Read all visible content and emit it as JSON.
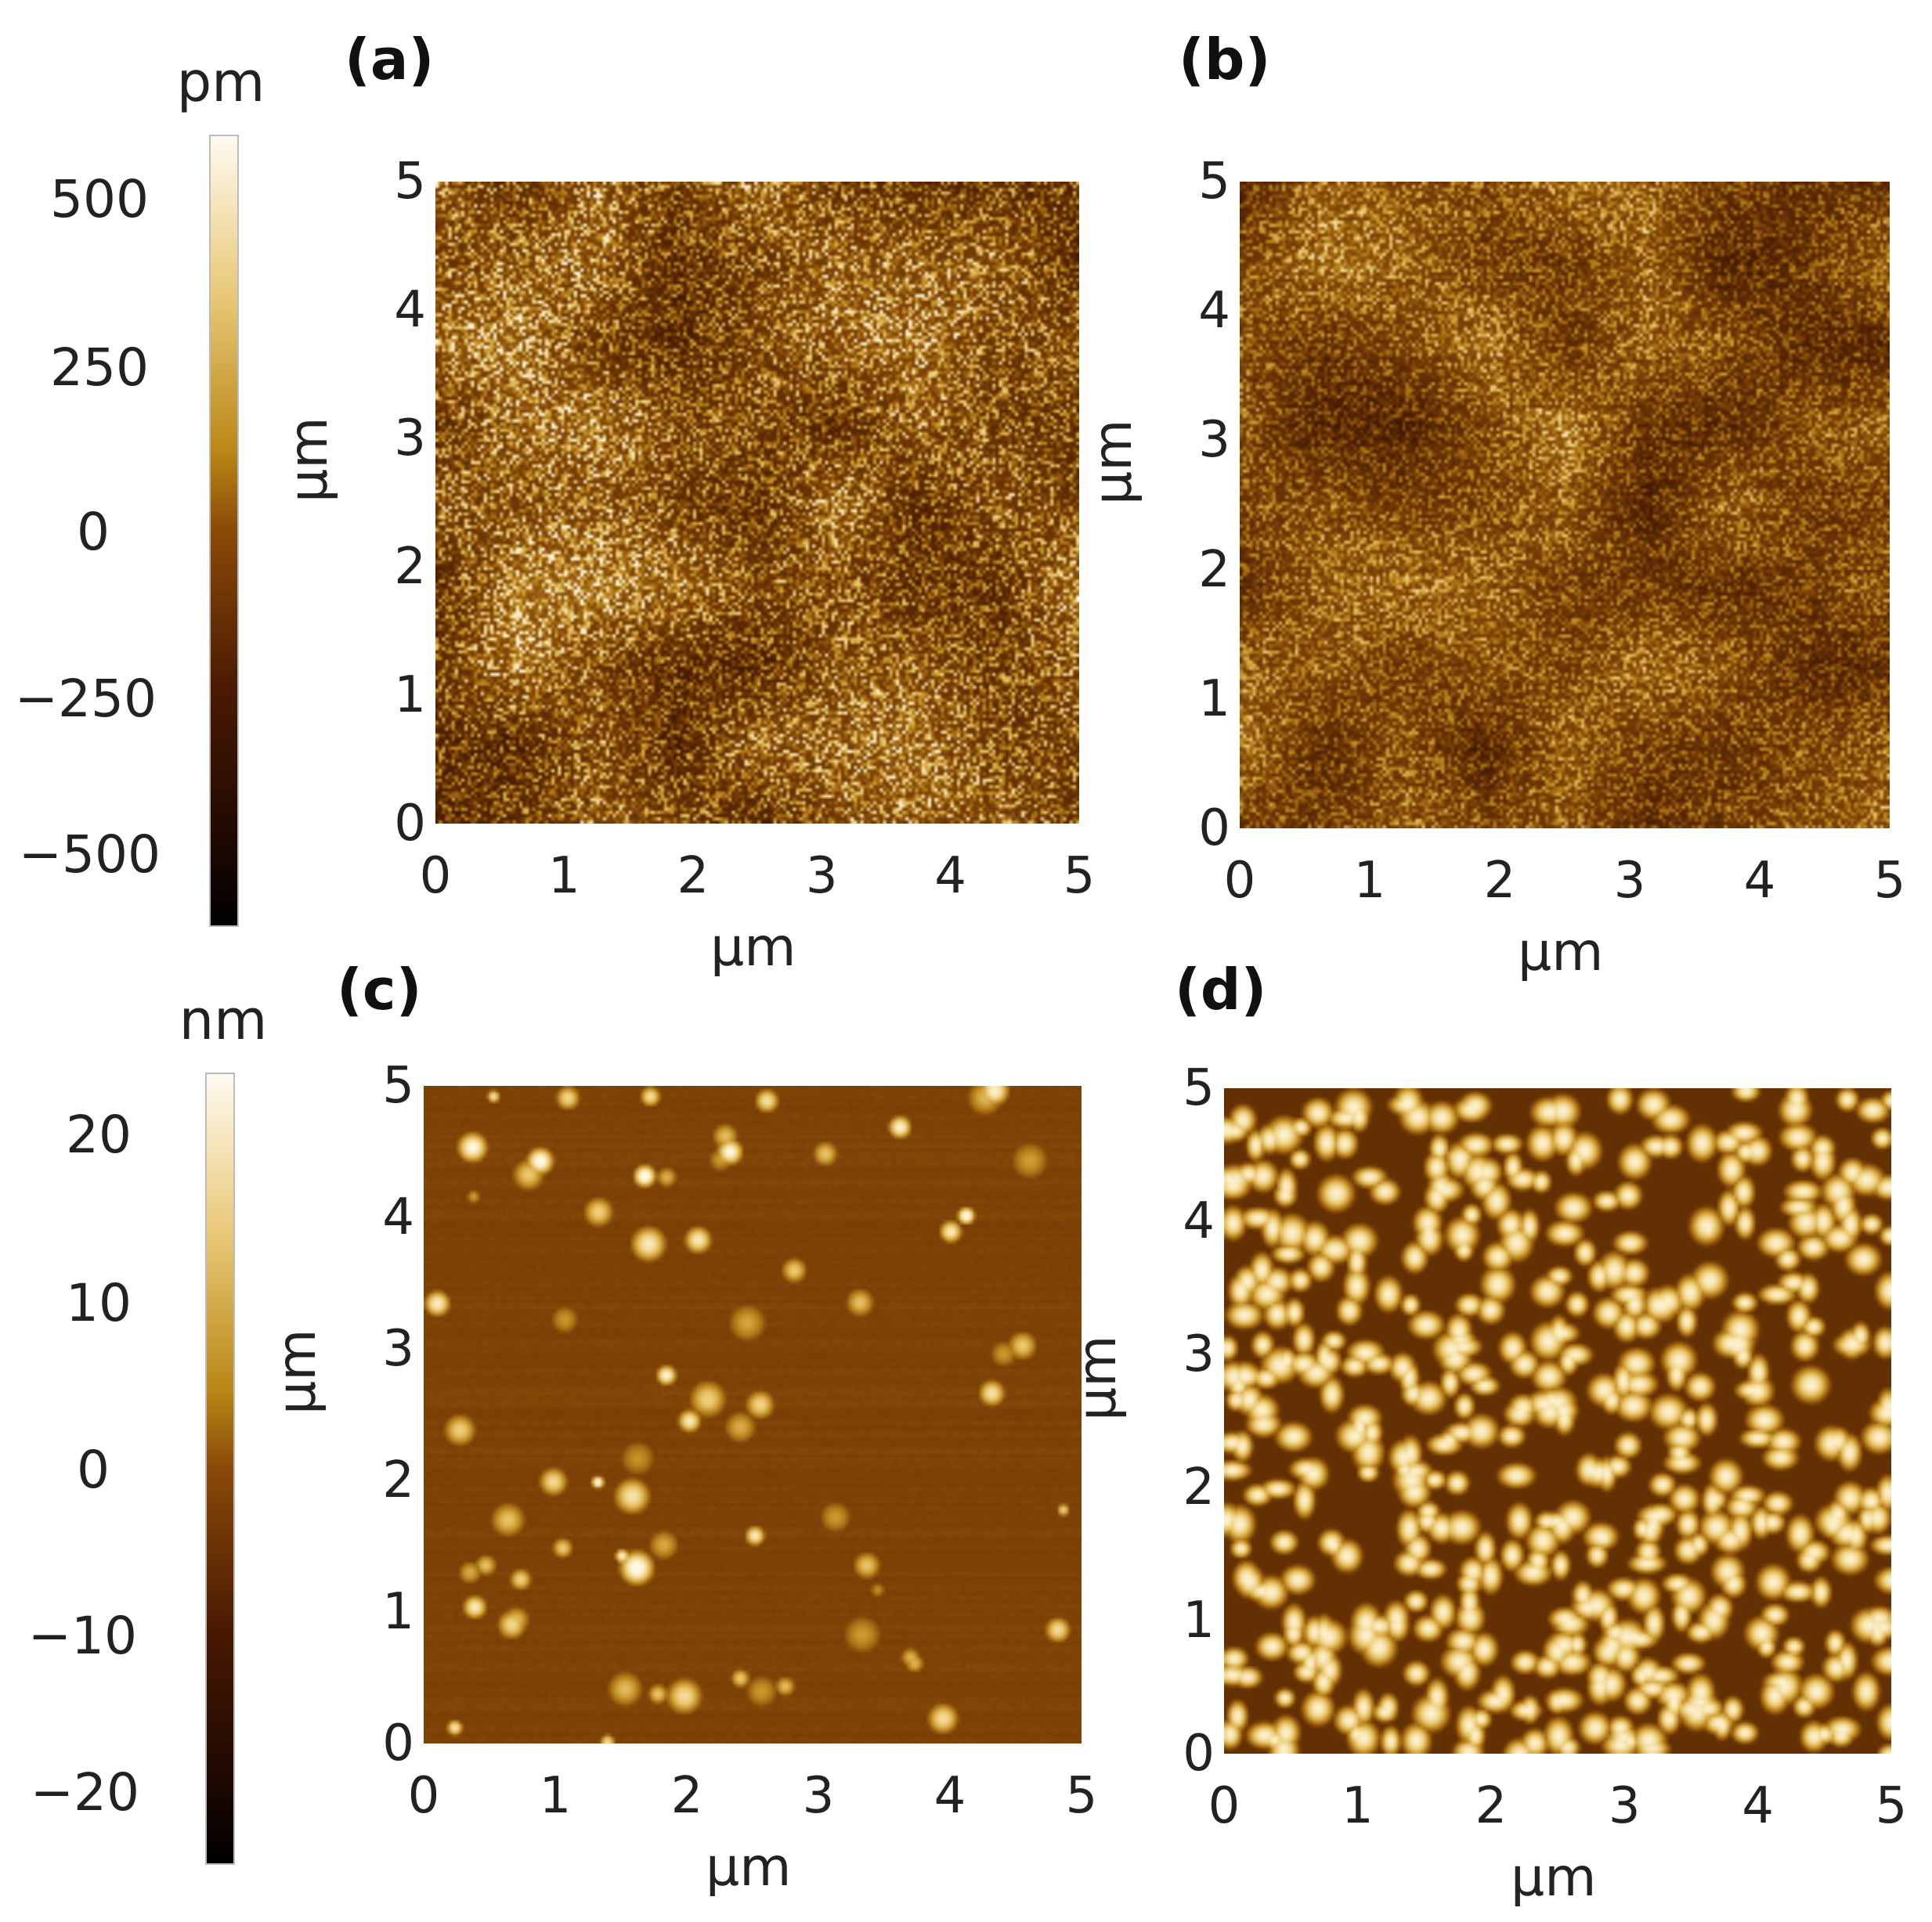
{
  "colorbars": [
    {
      "unit": "pm",
      "ticks": [
        {
          "label": "500",
          "value": 500
        },
        {
          "label": "250",
          "value": 250
        },
        {
          "label": "0",
          "value": 0
        },
        {
          "label": "−250",
          "value": -250
        },
        {
          "label": "−500",
          "value": -500
        }
      ]
    },
    {
      "unit": "nm",
      "ticks": [
        {
          "label": "20",
          "value": 20
        },
        {
          "label": "10",
          "value": 10
        },
        {
          "label": "0",
          "value": 0
        },
        {
          "label": "−10",
          "value": -10
        },
        {
          "label": "−20",
          "value": -20
        }
      ]
    }
  ],
  "panels": [
    {
      "label": "(a)",
      "xlabel": "µm",
      "ylabel": "µm",
      "ticks": [
        "0",
        "1",
        "2",
        "3",
        "4",
        "5"
      ],
      "texture": "fine-noise"
    },
    {
      "label": "(b)",
      "xlabel": "µm",
      "ylabel": "µm",
      "ticks": [
        "0",
        "1",
        "2",
        "3",
        "4",
        "5"
      ],
      "texture": "fine-noise-streaked"
    },
    {
      "label": "(c)",
      "xlabel": "µm",
      "ylabel": "µm",
      "ticks": [
        "0",
        "1",
        "2",
        "3",
        "4",
        "5"
      ],
      "texture": "flat-with-particles"
    },
    {
      "label": "(d)",
      "xlabel": "µm",
      "ylabel": "µm",
      "ticks": [
        "0",
        "1",
        "2",
        "3",
        "4",
        "5"
      ],
      "texture": "dense-islands"
    }
  ],
  "colors": {
    "dark": "#1a0800",
    "mid": "#7a4204",
    "gold": "#c08a1a",
    "light": "#fff6dc"
  }
}
